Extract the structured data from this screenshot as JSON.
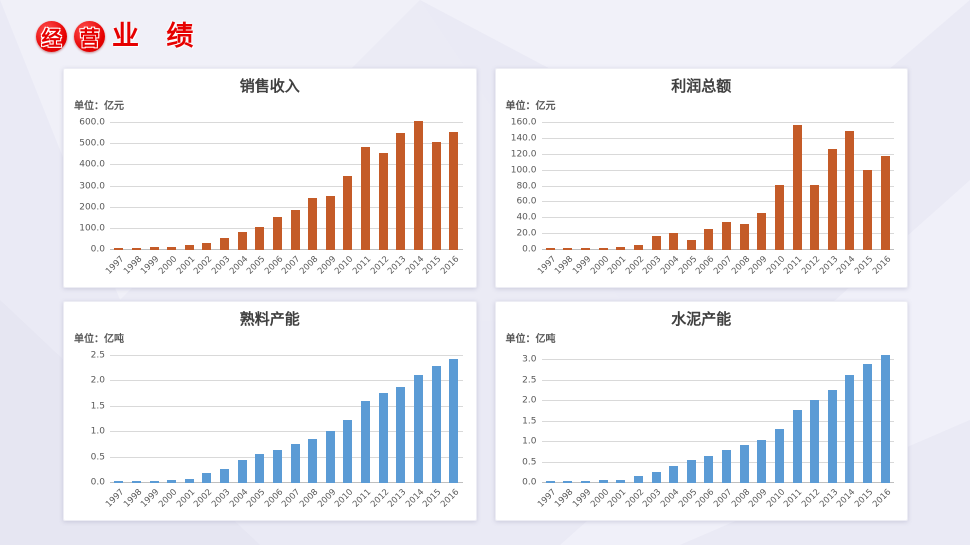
{
  "slide": {
    "title": {
      "badge_chars": [
        "经",
        "营"
      ],
      "rest": "业 绩",
      "color": "#e60000"
    }
  },
  "chart_data": [
    {
      "type": "bar",
      "title": "销售收入",
      "unit_label": "单位：亿元",
      "bar_color": "#c45b28",
      "legend": "none",
      "grid": "horizontal",
      "categories": [
        "1997",
        "1998",
        "1999",
        "2000",
        "2001",
        "2002",
        "2003",
        "2004",
        "2005",
        "2006",
        "2007",
        "2008",
        "2009",
        "2010",
        "2011",
        "2012",
        "2013",
        "2014",
        "2015",
        "2016"
      ],
      "values": [
        9,
        10,
        14,
        15,
        23,
        31,
        59,
        87,
        110,
        155,
        191,
        245,
        255,
        350,
        488,
        461,
        556,
        610,
        510,
        560
      ],
      "ylabel": "亿元",
      "ylim": [
        0,
        620
      ],
      "axis_max": 620,
      "y_ticks": [
        0,
        100,
        200,
        300,
        400,
        500,
        600
      ],
      "y_tick_labels": [
        "0.0",
        "100.0",
        "200.0",
        "300.0",
        "400.0",
        "500.0",
        "600.0"
      ]
    },
    {
      "type": "bar",
      "title": "利润总额",
      "unit_label": "单位：亿元",
      "bar_color": "#c45b28",
      "legend": "none",
      "grid": "horizontal",
      "categories": [
        "1997",
        "1998",
        "1999",
        "2000",
        "2001",
        "2002",
        "2003",
        "2004",
        "2005",
        "2006",
        "2007",
        "2008",
        "2009",
        "2010",
        "2011",
        "2012",
        "2013",
        "2014",
        "2015",
        "2016"
      ],
      "values": [
        2,
        2,
        2.5,
        2.5,
        4,
        6,
        18,
        21,
        12,
        27,
        35,
        33,
        46,
        82,
        157,
        82,
        127,
        150,
        101,
        118
      ],
      "ylabel": "亿元",
      "ylim": [
        0,
        165
      ],
      "axis_max": 165,
      "y_ticks": [
        0,
        20,
        40,
        60,
        80,
        100,
        120,
        140,
        160
      ],
      "y_tick_labels": [
        "0.0",
        "20.0",
        "40.0",
        "60.0",
        "80.0",
        "100.0",
        "120.0",
        "140.0",
        "160.0"
      ]
    },
    {
      "type": "bar",
      "title": "熟料产能",
      "unit_label": "单位：亿吨",
      "bar_color": "#5b9bd5",
      "legend": "none",
      "grid": "horizontal",
      "categories": [
        "1997",
        "1998",
        "1999",
        "2000",
        "2001",
        "2002",
        "2003",
        "2004",
        "2005",
        "2006",
        "2007",
        "2008",
        "2009",
        "2010",
        "2011",
        "2012",
        "2013",
        "2014",
        "2015",
        "2016"
      ],
      "values": [
        0.04,
        0.04,
        0.04,
        0.06,
        0.08,
        0.2,
        0.28,
        0.46,
        0.57,
        0.65,
        0.77,
        0.86,
        1.02,
        1.25,
        1.61,
        1.78,
        1.9,
        2.13,
        2.3,
        2.45
      ],
      "ylabel": "亿吨",
      "ylim": [
        0,
        2.58
      ],
      "axis_max": 2.58,
      "y_ticks": [
        0,
        0.5,
        1.0,
        1.5,
        2.0,
        2.5
      ],
      "y_tick_labels": [
        "0.0",
        "0.5",
        "1.0",
        "1.5",
        "2.0",
        "2.5"
      ]
    },
    {
      "type": "bar",
      "title": "水泥产能",
      "unit_label": "单位：亿吨",
      "bar_color": "#5b9bd5",
      "legend": "none",
      "grid": "horizontal",
      "categories": [
        "1997",
        "1998",
        "1999",
        "2000",
        "2001",
        "2002",
        "2003",
        "2004",
        "2005",
        "2006",
        "2007",
        "2008",
        "2009",
        "2010",
        "2011",
        "2012",
        "2013",
        "2014",
        "2015",
        "2016"
      ],
      "values": [
        0.05,
        0.05,
        0.05,
        0.08,
        0.08,
        0.17,
        0.28,
        0.42,
        0.55,
        0.65,
        0.81,
        0.94,
        1.06,
        1.33,
        1.78,
        2.04,
        2.27,
        2.63,
        2.9,
        3.13
      ],
      "ylabel": "亿吨",
      "ylim": [
        0,
        3.2
      ],
      "axis_max": 3.2,
      "y_ticks": [
        0,
        0.5,
        1.0,
        1.5,
        2.0,
        2.5,
        3.0
      ],
      "y_tick_labels": [
        "0.0",
        "0.5",
        "1.0",
        "1.5",
        "2.0",
        "2.5",
        "3.0"
      ]
    }
  ]
}
